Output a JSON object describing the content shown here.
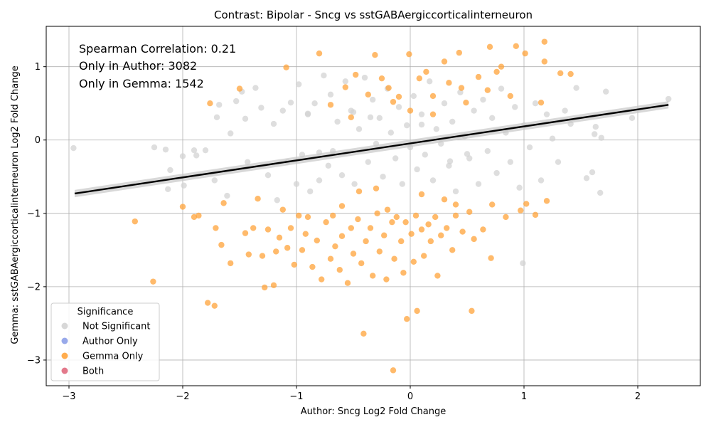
{
  "chart_data": {
    "type": "scatter",
    "title": "Contrast: Bipolar - Sncg vs sstGABAergiccorticalinterneuron",
    "xlabel": "Author: Sncg Log2 Fold Change",
    "ylabel": "Gemma: sstGABAergiccorticalinterneuron Log2 Fold Change",
    "xlim": [
      -3.2,
      2.55
    ],
    "ylim": [
      -3.35,
      1.55
    ],
    "xticks": [
      -3,
      -2,
      -1,
      0,
      1,
      2
    ],
    "yticks": [
      -3,
      -2,
      -1,
      0,
      1
    ],
    "grid": true,
    "annotations": [
      "Spearman Correlation: 0.21",
      "Only in Author: 3082",
      "Only in Gemma: 1542"
    ],
    "regression_line": {
      "x": [
        -2.95,
        2.27
      ],
      "y": [
        -0.73,
        0.48
      ]
    },
    "legend": {
      "title": "Significance",
      "position": "lower-left",
      "entries": [
        {
          "label": "Not Significant",
          "color": "#d3d3d3"
        },
        {
          "label": "Author Only",
          "color": "#8da0e8"
        },
        {
          "label": "Gemma Only",
          "color": "#ffa33a"
        },
        {
          "label": "Both",
          "color": "#e06a7e"
        }
      ]
    },
    "series": [
      {
        "category": "Not Significant",
        "color": "#d3d3d3",
        "points": [
          [
            -2.96,
            -0.11
          ],
          [
            -2.25,
            -0.1
          ],
          [
            -2.15,
            -0.13
          ],
          [
            -2.13,
            -0.67
          ],
          [
            -2.11,
            -0.41
          ],
          [
            -2.0,
            -0.22
          ],
          [
            -1.99,
            -0.62
          ],
          [
            -1.9,
            -0.14
          ],
          [
            -1.88,
            -0.21
          ],
          [
            -1.8,
            -0.14
          ],
          [
            -1.72,
            -0.55
          ],
          [
            -1.7,
            0.31
          ],
          [
            -1.68,
            0.48
          ],
          [
            -1.61,
            -0.76
          ],
          [
            -1.58,
            0.09
          ],
          [
            -1.53,
            0.53
          ],
          [
            -1.48,
            0.66
          ],
          [
            -1.45,
            0.29
          ],
          [
            -1.43,
            -0.3
          ],
          [
            -1.36,
            0.71
          ],
          [
            -1.31,
            0.44
          ],
          [
            -1.25,
            -0.48
          ],
          [
            -1.2,
            0.22
          ],
          [
            -1.17,
            -0.82
          ],
          [
            -1.12,
            0.4
          ],
          [
            -1.08,
            -0.3
          ],
          [
            -1.05,
            0.51
          ],
          [
            -1.0,
            -0.6
          ],
          [
            -0.98,
            0.76
          ],
          [
            -0.95,
            -0.2
          ],
          [
            -0.9,
            0.35
          ],
          [
            -0.88,
            -0.7
          ],
          [
            -0.84,
            0.5
          ],
          [
            -0.8,
            -0.55
          ],
          [
            -0.76,
            0.88
          ],
          [
            -0.72,
            -0.35
          ],
          [
            -0.7,
            0.62
          ],
          [
            -0.68,
            -0.15
          ],
          [
            -0.64,
            0.25
          ],
          [
            -0.6,
            -0.48
          ],
          [
            -0.57,
            0.8
          ],
          [
            -0.52,
            0.4
          ],
          [
            -0.49,
            -0.6
          ],
          [
            -0.45,
            0.15
          ],
          [
            -0.4,
            0.85
          ],
          [
            -0.37,
            -0.3
          ],
          [
            -0.33,
            0.55
          ],
          [
            -0.3,
            -0.05
          ],
          [
            -0.27,
            0.3
          ],
          [
            -0.24,
            -0.5
          ],
          [
            -0.2,
            0.7
          ],
          [
            -0.17,
            0.1
          ],
          [
            -0.13,
            -0.25
          ],
          [
            -0.1,
            0.45
          ],
          [
            -0.07,
            -0.6
          ],
          [
            -0.03,
            0.2
          ],
          [
            0.0,
            -0.1
          ],
          [
            0.03,
            0.6
          ],
          [
            0.06,
            -0.4
          ],
          [
            0.1,
            0.35
          ],
          [
            0.13,
            -0.2
          ],
          [
            0.17,
            0.8
          ],
          [
            0.2,
            -0.55
          ],
          [
            0.23,
            0.15
          ],
          [
            0.27,
            -0.05
          ],
          [
            0.3,
            0.5
          ],
          [
            0.34,
            -0.35
          ],
          [
            0.37,
            0.25
          ],
          [
            0.4,
            -0.7
          ],
          [
            0.44,
            0.65
          ],
          [
            0.48,
            0.05
          ],
          [
            0.52,
            -0.25
          ],
          [
            0.56,
            0.4
          ],
          [
            0.6,
            -0.6
          ],
          [
            0.64,
            0.55
          ],
          [
            0.68,
            -0.15
          ],
          [
            0.72,
            0.3
          ],
          [
            0.76,
            -0.45
          ],
          [
            0.8,
            0.7
          ],
          [
            0.84,
            0.1
          ],
          [
            0.88,
            -0.3
          ],
          [
            0.92,
            0.45
          ],
          [
            0.96,
            -0.65
          ],
          [
            1.0,
            0.2
          ],
          [
            1.05,
            -0.1
          ],
          [
            1.1,
            0.5
          ],
          [
            1.15,
            -0.55
          ],
          [
            1.2,
            0.35
          ],
          [
            1.25,
            0.02
          ],
          [
            1.3,
            -0.3
          ],
          [
            1.36,
            0.4
          ],
          [
            1.41,
            0.22
          ],
          [
            1.46,
            0.71
          ],
          [
            1.55,
            -0.52
          ],
          [
            1.6,
            -0.44
          ],
          [
            1.62,
            0.08
          ],
          [
            1.63,
            0.18
          ],
          [
            1.67,
            -0.72
          ],
          [
            1.68,
            0.03
          ],
          [
            1.72,
            0.66
          ],
          [
            1.95,
            0.3
          ],
          [
            2.27,
            0.56
          ],
          [
            0.99,
            -1.68
          ],
          [
            -0.9,
            0.36
          ],
          [
            -0.5,
            0.38
          ],
          [
            0.1,
            0.21
          ],
          [
            -0.8,
            -0.17
          ],
          [
            0.5,
            -0.19
          ],
          [
            -0.35,
            0.31
          ],
          [
            0.35,
            -0.29
          ]
        ]
      },
      {
        "category": "Gemma Only",
        "color": "#ffa33a",
        "points": [
          [
            -2.42,
            -1.11
          ],
          [
            -2.26,
            -1.93
          ],
          [
            -2.0,
            -0.91
          ],
          [
            -1.9,
            -1.05
          ],
          [
            -1.86,
            -1.03
          ],
          [
            -1.78,
            -2.22
          ],
          [
            -1.76,
            0.5
          ],
          [
            -1.72,
            -2.26
          ],
          [
            -1.71,
            -1.2
          ],
          [
            -1.66,
            -1.43
          ],
          [
            -1.64,
            -0.86
          ],
          [
            -1.58,
            -1.68
          ],
          [
            -1.5,
            0.7
          ],
          [
            -1.45,
            -1.27
          ],
          [
            -1.42,
            -1.56
          ],
          [
            -1.38,
            -1.2
          ],
          [
            -1.34,
            -0.8
          ],
          [
            -1.3,
            -1.58
          ],
          [
            -1.28,
            -2.01
          ],
          [
            -1.25,
            -1.22
          ],
          [
            -1.2,
            -1.98
          ],
          [
            -1.18,
            -1.52
          ],
          [
            -1.15,
            -1.33
          ],
          [
            -1.12,
            -0.95
          ],
          [
            -1.09,
            0.99
          ],
          [
            -1.08,
            -1.47
          ],
          [
            -1.05,
            -1.2
          ],
          [
            -1.02,
            -1.7
          ],
          [
            -0.98,
            -1.03
          ],
          [
            -0.95,
            -1.5
          ],
          [
            -0.92,
            -1.28
          ],
          [
            -0.9,
            -1.05
          ],
          [
            -0.86,
            -1.73
          ],
          [
            -0.82,
            -1.37
          ],
          [
            -0.8,
            1.18
          ],
          [
            -0.78,
            -1.9
          ],
          [
            -0.74,
            -1.12
          ],
          [
            -0.7,
            -1.62
          ],
          [
            -0.68,
            -1.03
          ],
          [
            -0.66,
            -1.45
          ],
          [
            -0.62,
            -1.77
          ],
          [
            -0.6,
            -1.31
          ],
          [
            -0.57,
            0.72
          ],
          [
            -0.55,
            -1.95
          ],
          [
            -0.52,
            -1.2
          ],
          [
            -0.5,
            -1.55
          ],
          [
            -0.48,
            0.89
          ],
          [
            -0.46,
            -1.08
          ],
          [
            -0.43,
            -1.68
          ],
          [
            -0.41,
            -2.64
          ],
          [
            -0.39,
            -1.38
          ],
          [
            -0.37,
            0.62
          ],
          [
            -0.35,
            -1.2
          ],
          [
            -0.33,
            -1.85
          ],
          [
            -0.31,
            1.16
          ],
          [
            -0.29,
            -1.0
          ],
          [
            -0.27,
            -1.52
          ],
          [
            -0.25,
            0.84
          ],
          [
            -0.23,
            -1.3
          ],
          [
            -0.21,
            -1.9
          ],
          [
            -0.19,
            0.71
          ],
          [
            -0.16,
            -1.12
          ],
          [
            -0.15,
            -3.14
          ],
          [
            -0.14,
            -1.62
          ],
          [
            -0.12,
            -1.05
          ],
          [
            -0.1,
            0.59
          ],
          [
            -0.08,
            -1.38
          ],
          [
            -0.06,
            -1.81
          ],
          [
            -0.04,
            -1.12
          ],
          [
            -0.03,
            -2.44
          ],
          [
            -0.01,
            1.17
          ],
          [
            0.01,
            -1.28
          ],
          [
            0.03,
            -1.66
          ],
          [
            0.05,
            -1.03
          ],
          [
            0.06,
            -2.33
          ],
          [
            0.08,
            0.84
          ],
          [
            0.1,
            -1.22
          ],
          [
            0.12,
            -1.58
          ],
          [
            0.14,
            0.93
          ],
          [
            0.16,
            -1.15
          ],
          [
            0.18,
            -1.38
          ],
          [
            0.2,
            0.6
          ],
          [
            0.22,
            -1.05
          ],
          [
            0.24,
            -1.85
          ],
          [
            0.27,
            -1.3
          ],
          [
            0.3,
            1.07
          ],
          [
            0.32,
            -1.2
          ],
          [
            0.34,
            0.78
          ],
          [
            0.37,
            -1.5
          ],
          [
            0.4,
            -1.03
          ],
          [
            0.43,
            1.19
          ],
          [
            0.46,
            -1.25
          ],
          [
            0.49,
            0.51
          ],
          [
            0.52,
            -0.98
          ],
          [
            0.54,
            -2.33
          ],
          [
            0.56,
            -1.35
          ],
          [
            0.6,
            0.86
          ],
          [
            0.64,
            -1.22
          ],
          [
            0.68,
            0.68
          ],
          [
            0.7,
            1.27
          ],
          [
            0.71,
            -1.61
          ],
          [
            0.72,
            -0.88
          ],
          [
            0.76,
            0.93
          ],
          [
            0.8,
            1.0
          ],
          [
            0.84,
            -1.05
          ],
          [
            0.88,
            0.6
          ],
          [
            0.93,
            1.28
          ],
          [
            0.97,
            -0.96
          ],
          [
            1.01,
            1.18
          ],
          [
            1.02,
            -0.87
          ],
          [
            1.1,
            -1.02
          ],
          [
            1.15,
            0.51
          ],
          [
            1.18,
            1.34
          ],
          [
            1.18,
            1.07
          ],
          [
            1.2,
            -0.83
          ],
          [
            1.32,
            0.91
          ],
          [
            1.41,
            0.9
          ],
          [
            -0.52,
            0.31
          ],
          [
            0.0,
            0.4
          ],
          [
            0.2,
            0.35
          ],
          [
            -0.3,
            -0.66
          ],
          [
            0.1,
            -0.74
          ],
          [
            -0.6,
            -0.9
          ],
          [
            0.3,
            -0.81
          ],
          [
            -0.45,
            -0.7
          ],
          [
            0.4,
            -0.88
          ],
          [
            -0.15,
            0.52
          ],
          [
            0.45,
            0.71
          ],
          [
            -0.7,
            0.48
          ],
          [
            -0.2,
            -0.95
          ]
        ]
      }
    ]
  }
}
